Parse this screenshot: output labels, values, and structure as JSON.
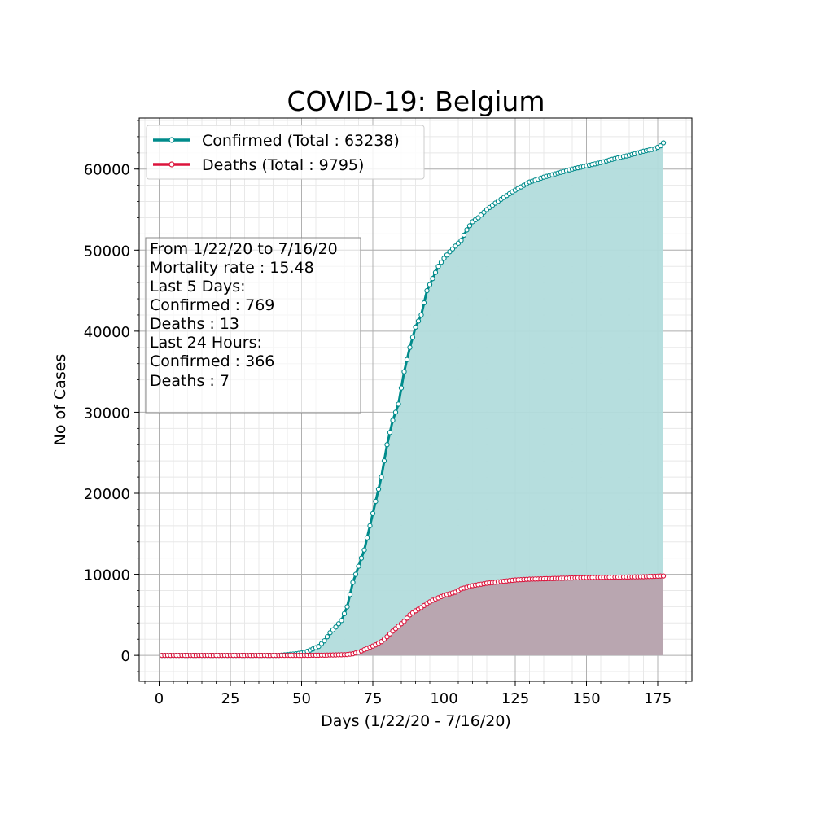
{
  "chart_data": {
    "type": "area",
    "title": "COVID-19: Belgium",
    "xlabel": "Days (1/22/20 - 7/16/20)",
    "ylabel": "No of Cases",
    "xlim": [
      -7,
      187
    ],
    "ylim": [
      -3200,
      66300
    ],
    "x_ticks": [
      0,
      25,
      50,
      75,
      100,
      125,
      150,
      175
    ],
    "y_ticks": [
      0,
      10000,
      20000,
      30000,
      40000,
      50000,
      60000
    ],
    "grid": true,
    "minor_grid": true,
    "legend_position": "top-left",
    "series": [
      {
        "name": "Confirmed (Total : 63238)",
        "color": "#008b8b",
        "fill": "#b2dcdc",
        "anchors": [
          [
            1,
            0
          ],
          [
            40,
            0
          ],
          [
            42,
            1
          ],
          [
            45,
            100
          ],
          [
            48,
            200
          ],
          [
            50,
            300
          ],
          [
            52,
            500
          ],
          [
            54,
            800
          ],
          [
            56,
            1100
          ],
          [
            58,
            1800
          ],
          [
            60,
            2800
          ],
          [
            62,
            3500
          ],
          [
            64,
            4300
          ],
          [
            66,
            6000
          ],
          [
            68,
            9000
          ],
          [
            70,
            11000
          ],
          [
            72,
            13000
          ],
          [
            74,
            16000
          ],
          [
            76,
            19000
          ],
          [
            78,
            22000
          ],
          [
            80,
            26000
          ],
          [
            82,
            29000
          ],
          [
            84,
            31000
          ],
          [
            86,
            35000
          ],
          [
            88,
            38000
          ],
          [
            90,
            40500
          ],
          [
            92,
            42000
          ],
          [
            94,
            45000
          ],
          [
            96,
            46500
          ],
          [
            98,
            48000
          ],
          [
            100,
            49000
          ],
          [
            102,
            49800
          ],
          [
            104,
            50500
          ],
          [
            106,
            51200
          ],
          [
            108,
            52500
          ],
          [
            110,
            53500
          ],
          [
            112,
            54000
          ],
          [
            115,
            55000
          ],
          [
            118,
            55800
          ],
          [
            121,
            56500
          ],
          [
            124,
            57200
          ],
          [
            127,
            57800
          ],
          [
            130,
            58400
          ],
          [
            135,
            59000
          ],
          [
            140,
            59500
          ],
          [
            145,
            60000
          ],
          [
            150,
            60400
          ],
          [
            155,
            60800
          ],
          [
            160,
            61300
          ],
          [
            165,
            61700
          ],
          [
            170,
            62200
          ],
          [
            174,
            62500
          ],
          [
            176,
            62872
          ],
          [
            177,
            63238
          ]
        ]
      },
      {
        "name": "Deaths (Total : 9795)",
        "color": "#dc143c",
        "fill": "#b9a0ab",
        "anchors": [
          [
            1,
            0
          ],
          [
            50,
            0
          ],
          [
            58,
            30
          ],
          [
            62,
            60
          ],
          [
            66,
            100
          ],
          [
            68,
            200
          ],
          [
            70,
            400
          ],
          [
            72,
            700
          ],
          [
            74,
            1000
          ],
          [
            76,
            1300
          ],
          [
            78,
            1700
          ],
          [
            80,
            2300
          ],
          [
            82,
            3000
          ],
          [
            84,
            3600
          ],
          [
            86,
            4200
          ],
          [
            88,
            5000
          ],
          [
            90,
            5500
          ],
          [
            92,
            5900
          ],
          [
            94,
            6400
          ],
          [
            96,
            6800
          ],
          [
            98,
            7100
          ],
          [
            100,
            7400
          ],
          [
            102,
            7600
          ],
          [
            104,
            7800
          ],
          [
            106,
            8200
          ],
          [
            108,
            8400
          ],
          [
            110,
            8600
          ],
          [
            115,
            8900
          ],
          [
            120,
            9100
          ],
          [
            125,
            9300
          ],
          [
            130,
            9400
          ],
          [
            140,
            9500
          ],
          [
            150,
            9600
          ],
          [
            160,
            9650
          ],
          [
            170,
            9700
          ],
          [
            175,
            9770
          ],
          [
            176,
            9788
          ],
          [
            177,
            9795
          ]
        ]
      }
    ],
    "annotation": [
      "From 1/22/20 to 7/16/20",
      "Mortality rate : 15.48",
      "Last 5 Days:",
      "Confirmed : 769",
      "Deaths : 13",
      "Last 24 Hours:",
      "Confirmed : 366",
      "Deaths : 7"
    ]
  }
}
